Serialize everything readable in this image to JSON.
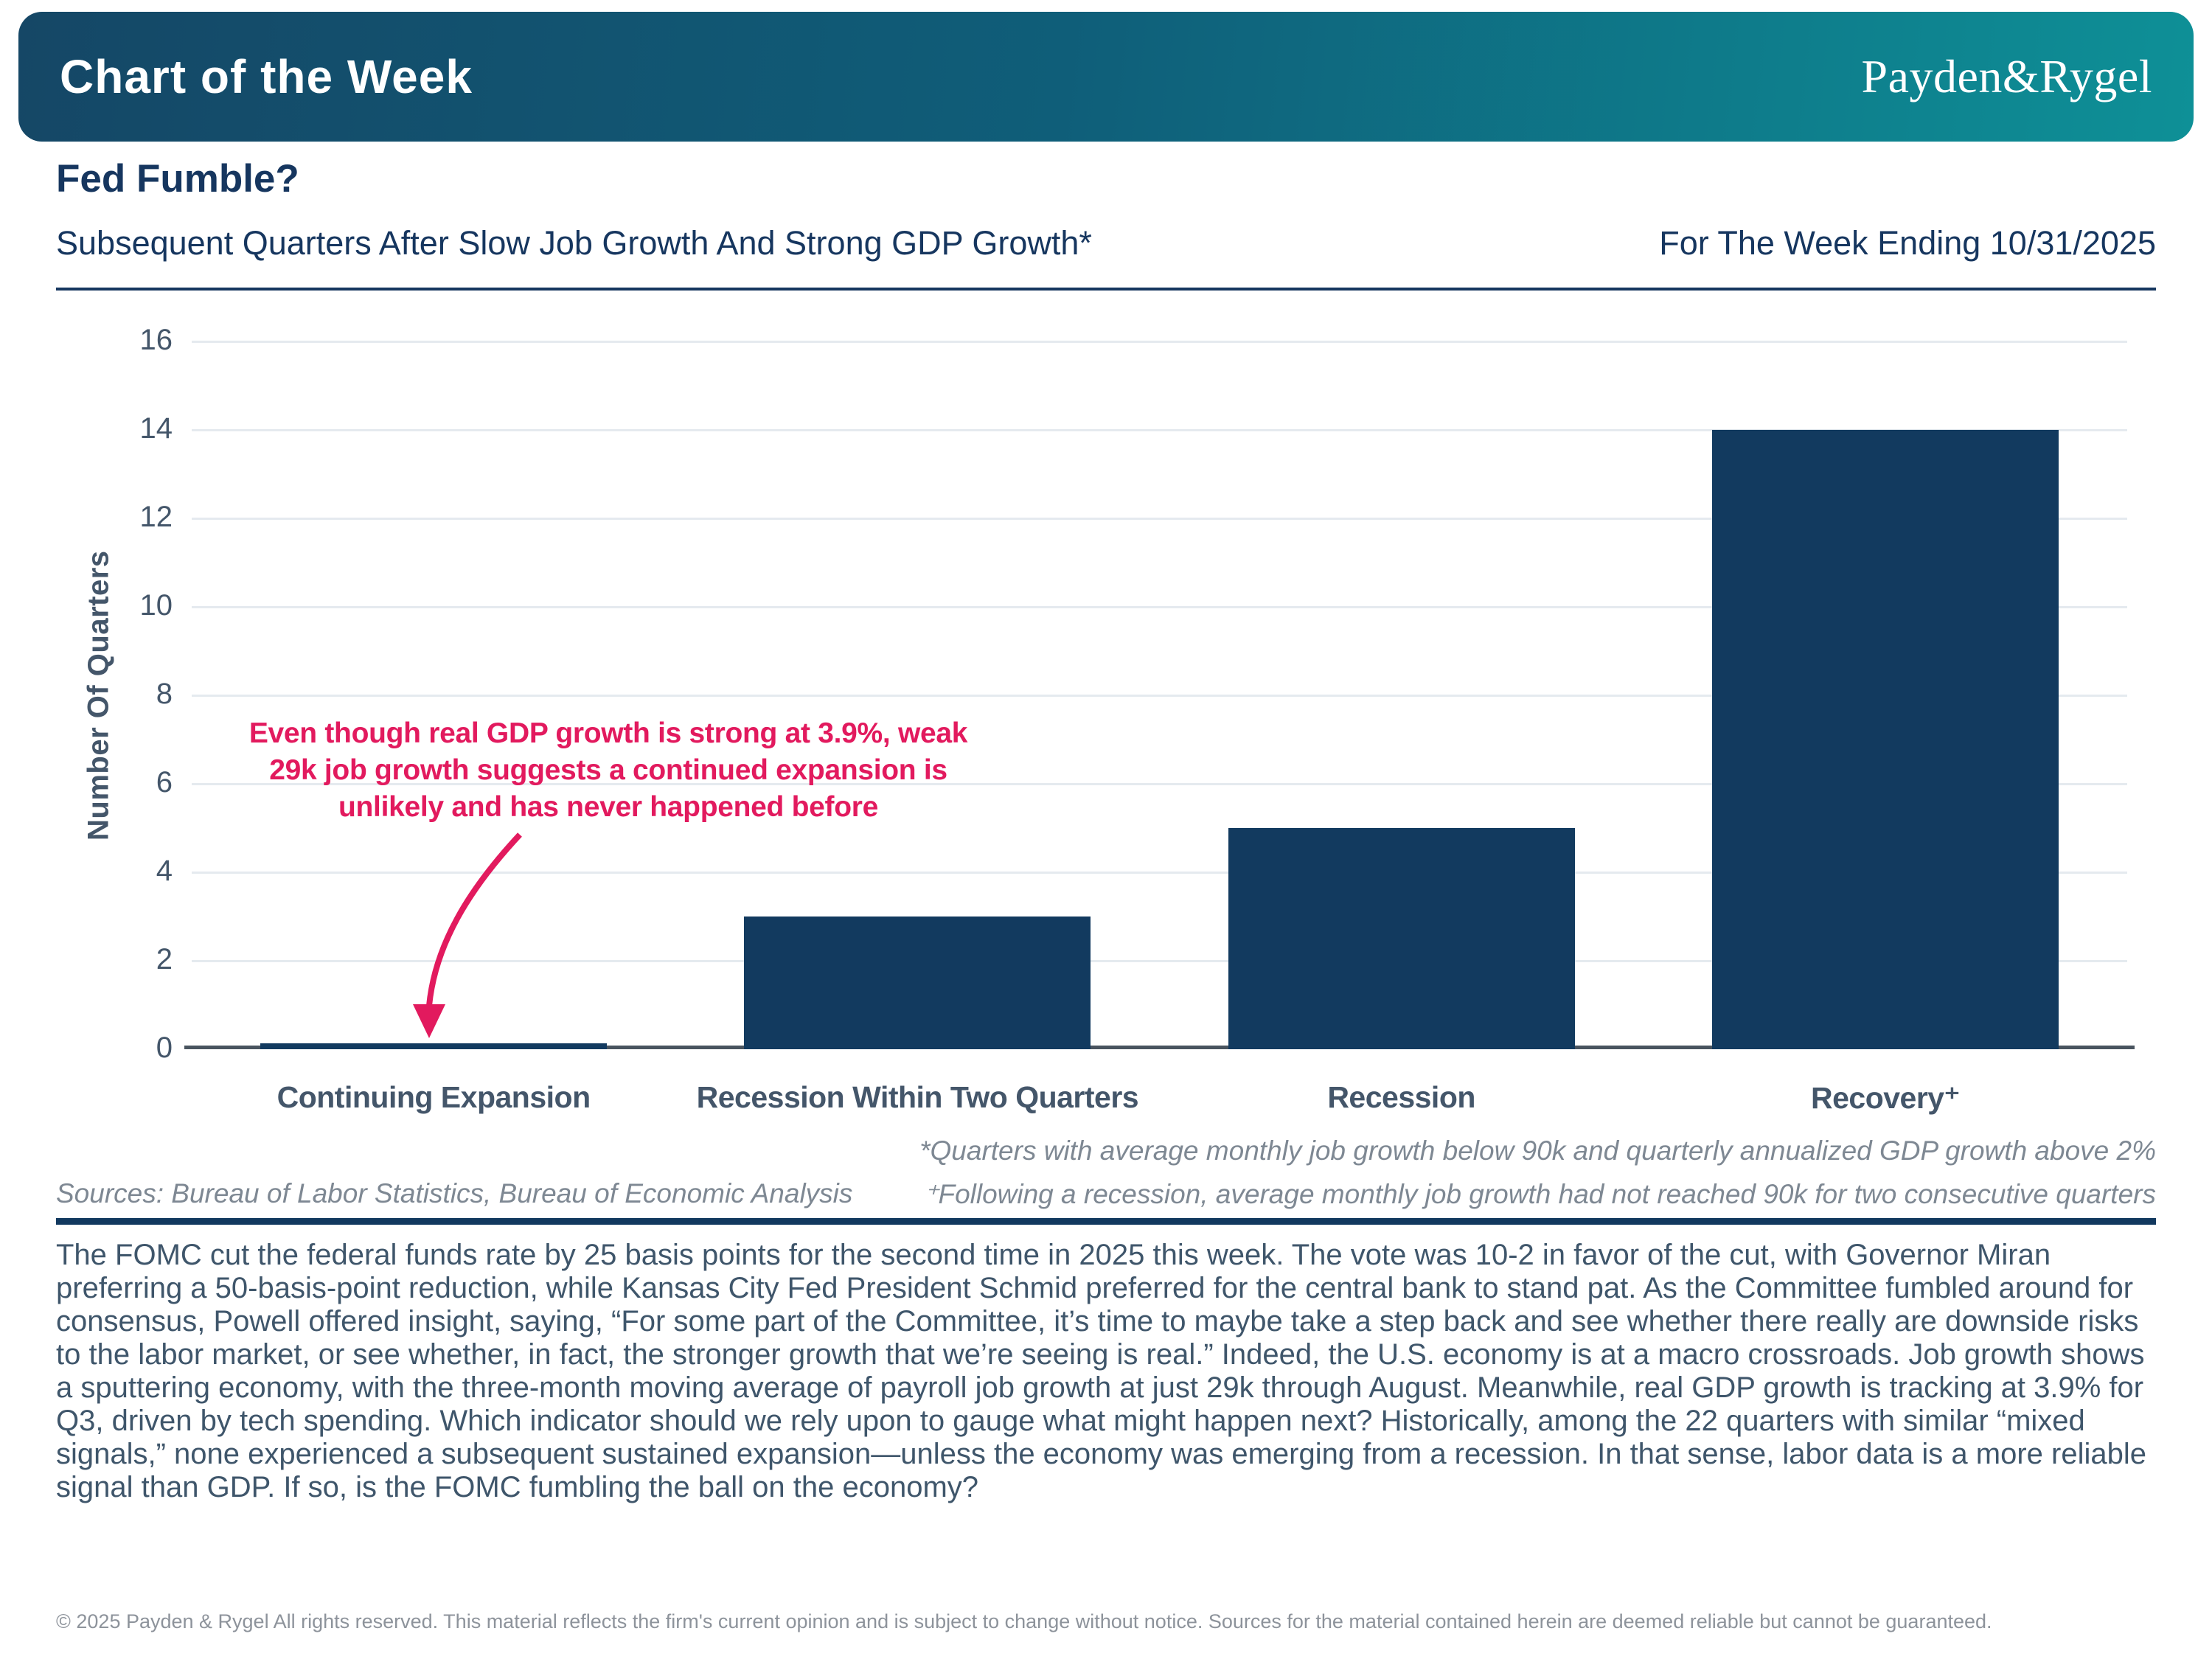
{
  "header": {
    "banner_title": "Chart of the Week",
    "logo": "Payden&Rygel"
  },
  "titles": {
    "title": "Fed Fumble?",
    "subtitle": "Subsequent Quarters After Slow Job Growth And Strong GDP Growth*",
    "week_ending": "For The Week Ending 10/31/2025"
  },
  "colors": {
    "banner_gradient_left": "#154766",
    "banner_gradient_right": "#0E9097",
    "navy_text": "#16365F",
    "bar_navy": "#123A5F",
    "accent_pink": "#E21A5E",
    "gridline_gray": "#E5EAEF",
    "footnote_gray": "#7E8893"
  },
  "chart_data": {
    "type": "bar",
    "title": "Subsequent Quarters After Slow Job Growth And Strong GDP Growth*",
    "categories": [
      "Continuing Expansion",
      "Recession Within Two Quarters",
      "Recession",
      "Recovery⁺"
    ],
    "values": [
      0,
      3,
      5,
      14
    ],
    "xlabel": "",
    "ylabel": "Number Of Quarters",
    "ylim": [
      0,
      16
    ],
    "yticks": [
      0,
      2,
      4,
      6,
      8,
      10,
      12,
      14,
      16
    ],
    "grid": true,
    "legend_position": "none",
    "bar_color": "#123A5F",
    "annotation": {
      "lines": [
        "Even though real GDP growth is strong at 3.9%, weak",
        "29k job growth suggests a continued expansion is",
        "unlikely and has never happened before"
      ],
      "color": "#E21A5E",
      "arrow_target": "Continuing Expansion"
    }
  },
  "footnotes": {
    "note1": "*Quarters with average monthly  job growth below 90k and quarterly annualized GDP growth above 2%",
    "sources": "Sources: Bureau of Labor Statistics, Bureau of Economic Analysis",
    "note2": "⁺Following a recession, average monthly job growth had not reached 90k for two consecutive quarters"
  },
  "body": {
    "paragraph": "The FOMC cut the federal funds rate by 25 basis points for the second time in 2025 this week. The vote was 10-2 in favor of the cut, with Governor Miran preferring a 50-basis-point reduction, while Kansas City Fed President Schmid preferred for the central bank to stand pat. As the Committee fumbled around for consensus, Powell offered insight, saying, “For some part of the Committee, it’s time to maybe take a step back and see whether there really are downside risks to the labor market, or see whether, in fact, the stronger growth that we’re seeing is real.” Indeed, the U.S. economy is at a macro crossroads. Job growth shows a sputtering economy, with the three-month moving average of payroll job growth at just 29k through August. Meanwhile, real GDP growth is tracking at 3.9% for Q3, driven by tech spending. Which indicator should we rely upon to gauge what might happen next? Historically, among the 22 quarters with similar “mixed signals,” none experienced a subsequent sustained expansion—unless the economy was emerging from a recession. In that sense, labor data is a more reliable signal than GDP. If so, is the FOMC fumbling the ball on the economy?"
  },
  "footer": {
    "copyright": "© 2025 Payden & Rygel All rights reserved. This material reflects the firm's current opinion and is subject to change without notice. Sources for the material contained herein are deemed reliable but cannot be guaranteed."
  }
}
